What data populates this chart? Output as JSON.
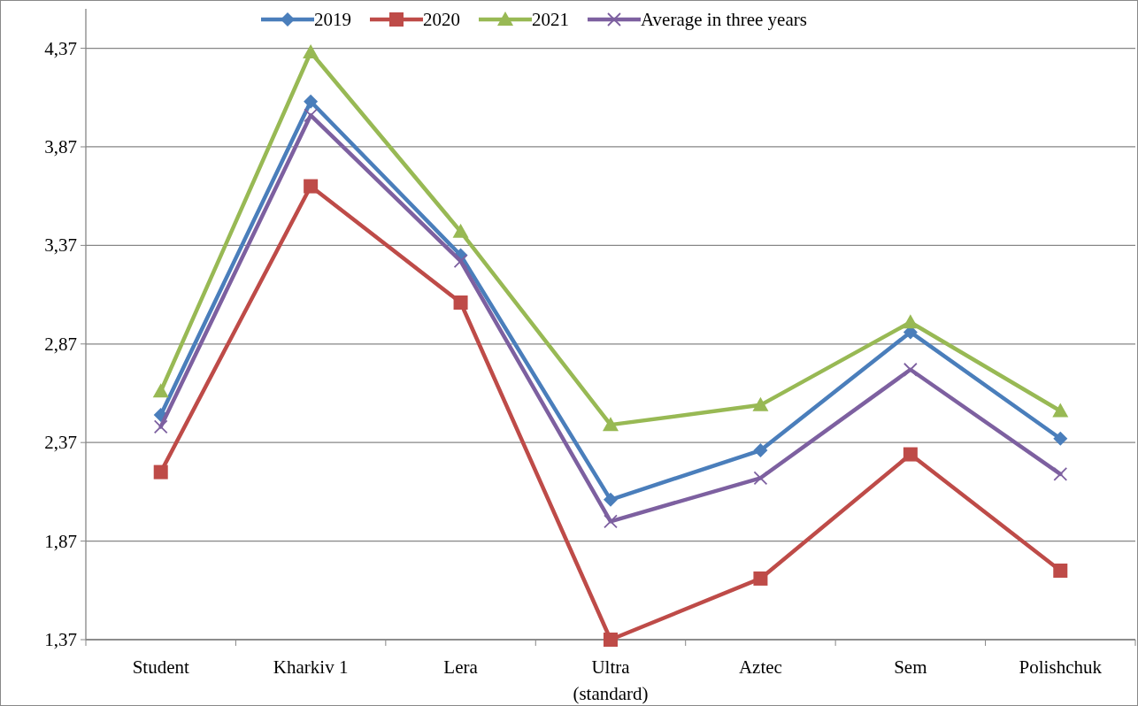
{
  "chart_data": {
    "type": "line",
    "categories": [
      "Student",
      "Kharkiv 1",
      "Lera",
      "Ultra (standard)",
      "Aztec",
      "Sem",
      "Polishchuk"
    ],
    "series": [
      {
        "name": "2019",
        "color": "#4a7ebb",
        "marker": "diamond",
        "values": [
          2.51,
          4.1,
          3.32,
          2.08,
          2.33,
          2.93,
          2.39
        ]
      },
      {
        "name": "2020",
        "color": "#be4b48",
        "marker": "square",
        "values": [
          2.22,
          3.67,
          3.08,
          1.37,
          1.68,
          2.31,
          1.72
        ]
      },
      {
        "name": "2021",
        "color": "#98b954",
        "marker": "triangle",
        "values": [
          2.63,
          4.35,
          3.44,
          2.46,
          2.56,
          2.98,
          2.53
        ]
      },
      {
        "name": "Average in three years",
        "color": "#7d60a0",
        "marker": "cross",
        "values": [
          2.45,
          4.03,
          3.29,
          1.97,
          2.19,
          2.74,
          2.21
        ]
      }
    ],
    "ylim": [
      1.37,
      4.57
    ],
    "yticks": [
      {
        "value": 1.37,
        "label": "1,37"
      },
      {
        "value": 1.87,
        "label": "1,87"
      },
      {
        "value": 2.37,
        "label": "2,37"
      },
      {
        "value": 2.87,
        "label": "2,87"
      },
      {
        "value": 3.37,
        "label": "3,37"
      },
      {
        "value": 3.87,
        "label": "3,87"
      },
      {
        "value": 4.37,
        "label": "4,37"
      }
    ],
    "grid": "y",
    "legend": "top"
  }
}
